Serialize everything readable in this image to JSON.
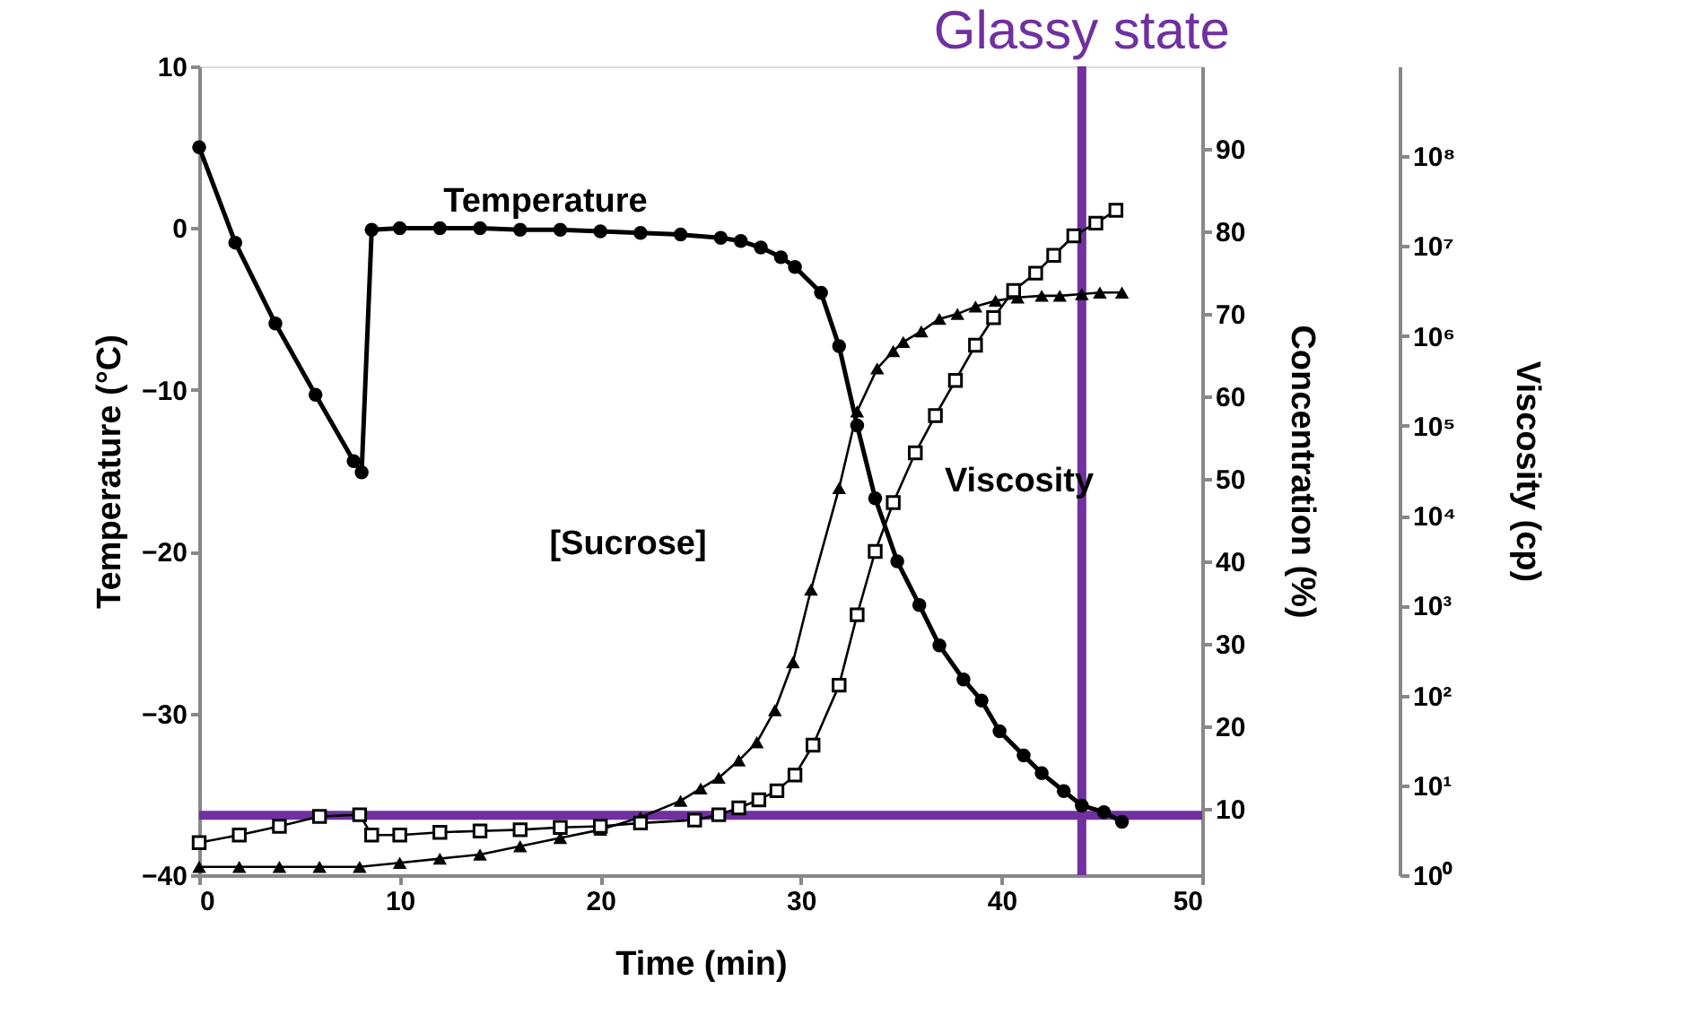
{
  "chart_data": {
    "type": "line",
    "xlabel": "Time (min)",
    "ylabel": "Temperature (°C)",
    "y2label": "Concentration (%)",
    "y3label": "Viscosity (cp)",
    "xlim": [
      0,
      50
    ],
    "xticks": [
      0,
      10,
      20,
      30,
      40,
      50
    ],
    "ylim": [
      -40,
      10
    ],
    "yticks": [
      -40,
      -30,
      -20,
      -10,
      0,
      10
    ],
    "y2lim": [
      2,
      100
    ],
    "y2ticks": [
      10,
      20,
      30,
      40,
      50,
      60,
      70,
      80,
      90
    ],
    "y3lim": [
      1,
      1000000000
    ],
    "y3ticks": [
      {
        "value": 1,
        "label": "10⁰"
      },
      {
        "value": 10,
        "label": "10¹"
      },
      {
        "value": 100,
        "label": "10²"
      },
      {
        "value": 1000,
        "label": "10³"
      },
      {
        "value": 10000,
        "label": "10⁴"
      },
      {
        "value": 100000,
        "label": "10⁵"
      },
      {
        "value": 1000000,
        "label": "10⁶"
      },
      {
        "value": 10000000,
        "label": "10⁷"
      },
      {
        "value": 100000000,
        "label": "10⁸"
      }
    ],
    "log": "y3",
    "grid": false,
    "series": [
      {
        "color": "#000000",
        "marker": "circle",
        "line_style": "solid",
        "axis": "y",
        "x": [
          0,
          1.8,
          3.8,
          5.8,
          7.7,
          8.1,
          8.6,
          10,
          12,
          14,
          16,
          18,
          20,
          22,
          24,
          26,
          27,
          28,
          29,
          29.7,
          31,
          31.9,
          32.8,
          33.7,
          34.8,
          35.9,
          36.9,
          38.1,
          39,
          39.9,
          41.1,
          42,
          43.1,
          44,
          45.1,
          46
        ],
        "values": [
          5,
          -0.9,
          -5.9,
          -10.3,
          -14.4,
          -15.1,
          -0.1,
          0,
          0,
          0,
          -0.1,
          -0.1,
          -0.2,
          -0.3,
          -0.4,
          -0.6,
          -0.8,
          -1.2,
          -1.8,
          -2.4,
          -4,
          -7.3,
          -12.2,
          -16.7,
          -20.6,
          -23.3,
          -25.8,
          -27.9,
          -29.2,
          -31.1,
          -32.6,
          -33.7,
          -34.8,
          -35.7,
          -36.1,
          -36.7
        ]
      },
      {
        "color": "#000000",
        "marker": "triangle",
        "line_style": "solid",
        "axis": "y2",
        "x": [
          0,
          2,
          4,
          6,
          8,
          10,
          12,
          14,
          16,
          18,
          20,
          22,
          24,
          25,
          25.9,
          26.9,
          27.8,
          28.7,
          29.6,
          30.5,
          31.9,
          32.8,
          33.8,
          34.6,
          35.1,
          36,
          36.9,
          37.8,
          38.7,
          39.7,
          40.8,
          42,
          42.9,
          44,
          44.9,
          46
        ],
        "values": [
          3,
          3,
          3,
          3,
          3,
          3.5,
          4,
          4.5,
          5.5,
          6.5,
          7.5,
          9,
          11,
          12.5,
          13.8,
          15.9,
          18.1,
          22,
          27.8,
          36.6,
          48.9,
          58.2,
          63.4,
          65.5,
          66.6,
          67.9,
          69.4,
          70,
          70.9,
          71.6,
          72,
          72.2,
          72.2,
          72.4,
          72.6,
          72.6
        ]
      },
      {
        "color": "#000000",
        "marker": "square",
        "line_style": "solid",
        "axis": "y3",
        "x": [
          0,
          2,
          4,
          6,
          8,
          8.6,
          10,
          12,
          14,
          16,
          18,
          20,
          22,
          24.7,
          25.9,
          26.9,
          27.9,
          28.8,
          29.7,
          30.6,
          31.9,
          32.8,
          33.7,
          34.6,
          35.7,
          36.7,
          37.7,
          38.7,
          39.6,
          40.6,
          41.7,
          42.6,
          43.6,
          44.7,
          45.7
        ],
        "values": [
          2.3,
          2.8,
          3.5,
          4.5,
          4.7,
          2.8,
          2.8,
          3.0,
          3.1,
          3.2,
          3.4,
          3.5,
          3.8,
          4.1,
          4.7,
          5.6,
          6.9,
          8.7,
          13,
          28,
          130,
          790,
          4000,
          14000,
          50000,
          130000,
          320000,
          790000,
          1600000,
          3200000,
          5000000,
          7900000,
          13000000,
          18000000,
          25000000
        ]
      }
    ],
    "ref_lines": [
      {
        "axis": "x",
        "value": 44,
        "label": "Glassy state",
        "color": "#7030a0",
        "line_style": "solid"
      },
      {
        "axis": "y",
        "value": -36.3,
        "color": "#7030a0",
        "line_style": "solid"
      }
    ],
    "annotations": [
      "Temperature",
      "[Sucrose]",
      "Viscosity"
    ]
  }
}
